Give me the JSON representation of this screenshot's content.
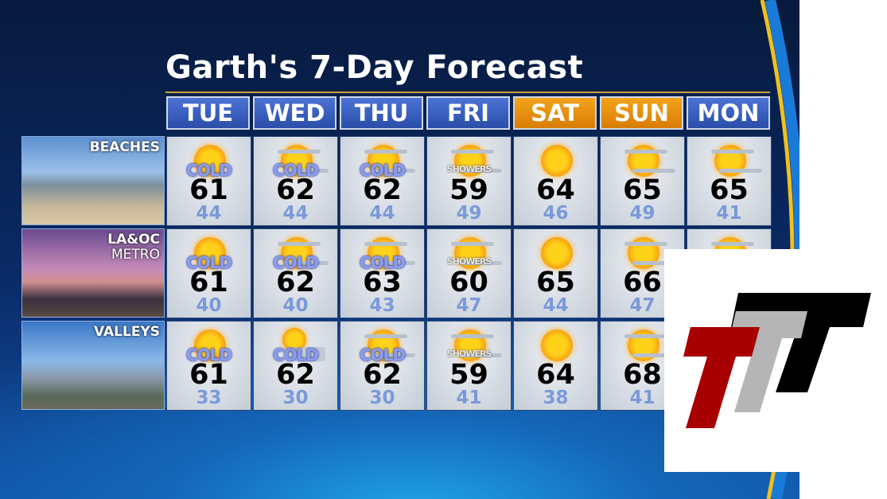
{
  "title": "Garth's 7-Day Forecast",
  "days": [
    {
      "label": "TUE",
      "weekend": false
    },
    {
      "label": "WED",
      "weekend": false
    },
    {
      "label": "THU",
      "weekend": false
    },
    {
      "label": "FRI",
      "weekend": false
    },
    {
      "label": "SAT",
      "weekend": true
    },
    {
      "label": "SUN",
      "weekend": true
    },
    {
      "label": "MON",
      "weekend": false
    }
  ],
  "colors": {
    "weekday_header": "#3a62c4",
    "weekend_header": "#e88e10",
    "low_temp": "#7a9ad8",
    "title_rule": "#c9a53a"
  },
  "regions": [
    {
      "label": "BEACHES",
      "label2": "",
      "cells": [
        {
          "icon": "sun-icon",
          "tag": "COLD",
          "high": "61",
          "low": "44"
        },
        {
          "icon": "partly-cloudy-icon",
          "tag": "COLD",
          "high": "62",
          "low": "44"
        },
        {
          "icon": "partly-cloudy-icon",
          "tag": "COLD",
          "high": "62",
          "low": "44"
        },
        {
          "icon": "partly-cloudy-icon",
          "tag": "SHOWERS",
          "high": "59",
          "low": "49"
        },
        {
          "icon": "sun-icon",
          "tag": "",
          "high": "64",
          "low": "46"
        },
        {
          "icon": "partly-cloudy-icon",
          "tag": "",
          "high": "65",
          "low": "49"
        },
        {
          "icon": "partly-cloudy-icon",
          "tag": "",
          "high": "65",
          "low": "41"
        }
      ]
    },
    {
      "label": "LA&OC",
      "label2": "METRO",
      "cells": [
        {
          "icon": "sun-icon",
          "tag": "COLD",
          "high": "61",
          "low": "40"
        },
        {
          "icon": "partly-cloudy-icon",
          "tag": "COLD",
          "high": "62",
          "low": "40"
        },
        {
          "icon": "partly-cloudy-icon",
          "tag": "COLD",
          "high": "63",
          "low": "43"
        },
        {
          "icon": "partly-cloudy-icon",
          "tag": "SHOWERS",
          "high": "60",
          "low": "47"
        },
        {
          "icon": "sun-icon",
          "tag": "",
          "high": "65",
          "low": "44"
        },
        {
          "icon": "partly-cloudy-icon",
          "tag": "",
          "high": "66",
          "low": "47"
        },
        {
          "icon": "partly-cloudy-icon",
          "tag": "",
          "high": "",
          "low": ""
        }
      ]
    },
    {
      "label": "VALLEYS",
      "label2": "",
      "cells": [
        {
          "icon": "sun-icon",
          "tag": "COLD",
          "high": "61",
          "low": "33"
        },
        {
          "icon": "cloudy-sun-icon",
          "tag": "COLD",
          "high": "62",
          "low": "30"
        },
        {
          "icon": "partly-cloudy-icon",
          "tag": "COLD",
          "high": "62",
          "low": "30"
        },
        {
          "icon": "partly-cloudy-icon",
          "tag": "SHOWERS",
          "high": "59",
          "low": "41"
        },
        {
          "icon": "sun-icon",
          "tag": "",
          "high": "64",
          "low": "38"
        },
        {
          "icon": "partly-cloudy-icon",
          "tag": "",
          "high": "68",
          "low": "41"
        },
        {
          "icon": "partly-cloudy-icon",
          "tag": "",
          "high": "",
          "low": ""
        }
      ]
    }
  ],
  "logo": {
    "text": "TTT",
    "colors": [
      "#a80000",
      "#b5b5b5",
      "#000000"
    ]
  }
}
